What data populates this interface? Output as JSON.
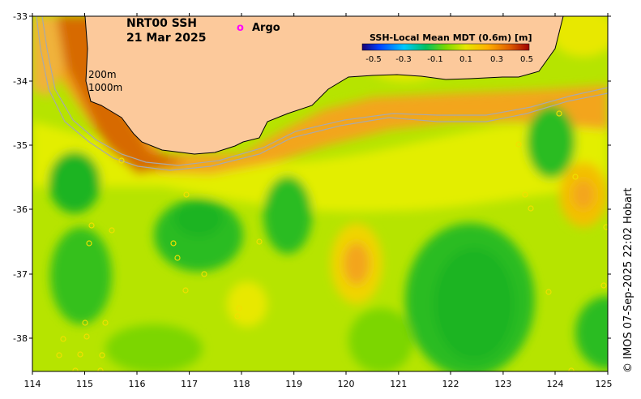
{
  "title_line1": "NRT00 SSH",
  "title_line2": "21 Mar 2025",
  "argo_marker": "o",
  "argo_label": "Argo",
  "colorbar_title": "SSH-Local Mean MDT (0.6m) [m]",
  "colorbar_ticks": [
    "-0.5",
    "-0.3",
    "-0.1",
    "0.1",
    "0.3",
    "0.5"
  ],
  "depth_label_200": "200m",
  "depth_label_1000": "1000m",
  "lat_ticks": [
    "-33",
    "-34",
    "-35",
    "-36",
    "-37",
    "-38"
  ],
  "lon_ticks": [
    "114",
    "115",
    "116",
    "117",
    "118",
    "119",
    "120",
    "121",
    "122",
    "123",
    "124",
    "125"
  ],
  "credit": "© IMOS 07-Sep-2025 22:02 Hobart",
  "colors": {
    "land": "#fcc99b",
    "coast": "#000000",
    "isobath": "#a9a9a9",
    "argo": "#ff00ff",
    "high": "#e58a00",
    "mid": "#cfe800",
    "low": "#1fb41f"
  }
}
